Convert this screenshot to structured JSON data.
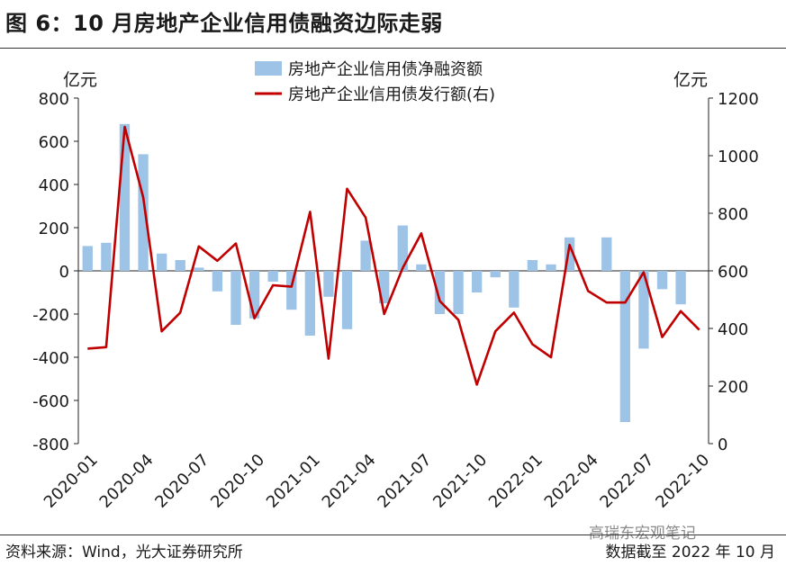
{
  "header": {
    "title": "图 6：10 月房地产企业信用债融资边际走弱"
  },
  "footer": {
    "source": "资料来源：Wind，光大证券研究所",
    "date_note": "数据截至 2022 年 10 月",
    "watermark": "高瑞东宏观笔记"
  },
  "chart_data": {
    "type": "bar+line",
    "title": "10 月房地产企业信用债融资边际走弱",
    "y_left_unit": "亿元",
    "y_right_unit": "亿元",
    "y_left_lim": [
      -800,
      800
    ],
    "y_left_ticks": [
      "800",
      "600",
      "400",
      "200",
      "0",
      "-200",
      "-400",
      "-600",
      "-800"
    ],
    "y_right_lim": [
      0,
      1200
    ],
    "y_right_ticks": [
      "1200",
      "1000",
      "800",
      "600",
      "400",
      "200",
      "0"
    ],
    "x_tick_labels": [
      "2020-01",
      "2020-04",
      "2020-07",
      "2020-10",
      "2021-01",
      "2021-04",
      "2021-07",
      "2021-10",
      "2022-01",
      "2022-04",
      "2022-07",
      "2022-10"
    ],
    "categories": [
      "2020-01",
      "2020-02",
      "2020-03",
      "2020-04",
      "2020-05",
      "2020-06",
      "2020-07",
      "2020-08",
      "2020-09",
      "2020-10",
      "2020-11",
      "2020-12",
      "2021-01",
      "2021-02",
      "2021-03",
      "2021-04",
      "2021-05",
      "2021-06",
      "2021-07",
      "2021-08",
      "2021-09",
      "2021-10",
      "2021-11",
      "2021-12",
      "2022-01",
      "2022-02",
      "2022-03",
      "2022-04",
      "2022-05",
      "2022-06",
      "2022-07",
      "2022-08",
      "2022-09",
      "2022-10"
    ],
    "series": [
      {
        "name": "房地产企业信用债净融资额",
        "type": "bar",
        "axis": "left",
        "color": "#9dc3e6",
        "values": [
          115,
          130,
          680,
          540,
          80,
          50,
          15,
          -95,
          -250,
          -220,
          -50,
          -180,
          -300,
          -120,
          -270,
          140,
          -150,
          210,
          30,
          -200,
          -200,
          -100,
          -30,
          -170,
          50,
          30,
          155,
          0,
          155,
          -700,
          -360,
          -85,
          -155,
          0
        ]
      },
      {
        "name": "房地产企业信用债发行额(右)",
        "type": "line",
        "axis": "right",
        "color": "#c00000",
        "values": [
          330,
          335,
          1100,
          855,
          390,
          455,
          685,
          635,
          695,
          435,
          550,
          545,
          805,
          295,
          885,
          785,
          450,
          610,
          730,
          495,
          430,
          205,
          390,
          455,
          345,
          300,
          690,
          530,
          490,
          490,
          595,
          370,
          460,
          395
        ]
      }
    ],
    "legend_position": "top-center",
    "grid": false
  }
}
